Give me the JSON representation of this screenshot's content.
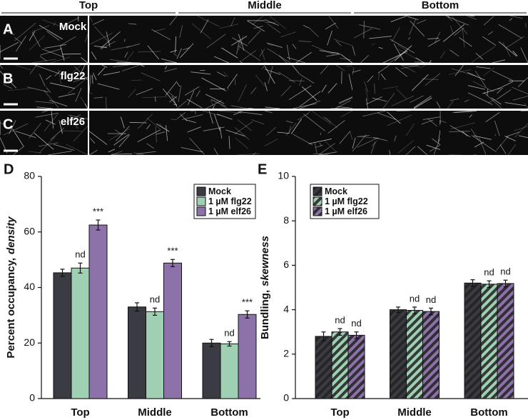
{
  "figure": {
    "columns": [
      "Top",
      "Middle",
      "Bottom"
    ],
    "rows": [
      {
        "panel": "A",
        "label": "Mock"
      },
      {
        "panel": "B",
        "label": "flg22"
      },
      {
        "panel": "C",
        "label": "elf26"
      }
    ]
  },
  "chart_data": [
    {
      "type": "bar",
      "panel": "D",
      "ylabel": [
        "Percent occupancy,",
        "density"
      ],
      "categories": [
        "Top",
        "Middle",
        "Bottom"
      ],
      "ylim": [
        0,
        80
      ],
      "yticks": [
        0,
        20,
        40,
        60,
        80
      ],
      "hatch": false,
      "legend": "upper right",
      "series": [
        {
          "name": "Mock",
          "color": "#3b3b44",
          "values": [
            45.3,
            33.0,
            20.0
          ],
          "errors": [
            1.3,
            1.5,
            1.3
          ],
          "annotations": [
            null,
            null,
            null
          ]
        },
        {
          "name": "1 µM flg22",
          "color": "#9fd0b4",
          "values": [
            47.0,
            31.3,
            19.7
          ],
          "errors": [
            1.8,
            1.3,
            0.8
          ],
          "annotations": [
            "nd",
            "nd",
            "nd"
          ]
        },
        {
          "name": "1 µM elf26",
          "color": "#8c72a8",
          "values": [
            62.5,
            48.8,
            30.3
          ],
          "errors": [
            1.8,
            1.3,
            1.3
          ],
          "annotations": [
            "***",
            "***",
            "***"
          ]
        }
      ]
    },
    {
      "type": "bar",
      "panel": "E",
      "ylabel": [
        "Bundling,",
        "skewness"
      ],
      "categories": [
        "Top",
        "Middle",
        "Bottom"
      ],
      "ylim": [
        0,
        10
      ],
      "yticks": [
        0,
        2,
        4,
        6,
        8,
        10
      ],
      "hatch": true,
      "legend": "upper left",
      "series": [
        {
          "name": "Mock",
          "color": "#3b3b44",
          "values": [
            2.8,
            4.0,
            5.2
          ],
          "errors": [
            0.2,
            0.12,
            0.15
          ],
          "annotations": [
            null,
            null,
            null
          ]
        },
        {
          "name": "1 µM flg22",
          "color": "#9fd0b4",
          "values": [
            3.0,
            3.97,
            5.15
          ],
          "errors": [
            0.15,
            0.15,
            0.15
          ],
          "annotations": [
            "nd",
            "nd",
            "nd"
          ]
        },
        {
          "name": "1 µM elf26",
          "color": "#8c72a8",
          "values": [
            2.85,
            3.92,
            5.18
          ],
          "errors": [
            0.15,
            0.15,
            0.15
          ],
          "annotations": [
            "nd",
            "nd",
            "nd"
          ]
        }
      ]
    }
  ]
}
